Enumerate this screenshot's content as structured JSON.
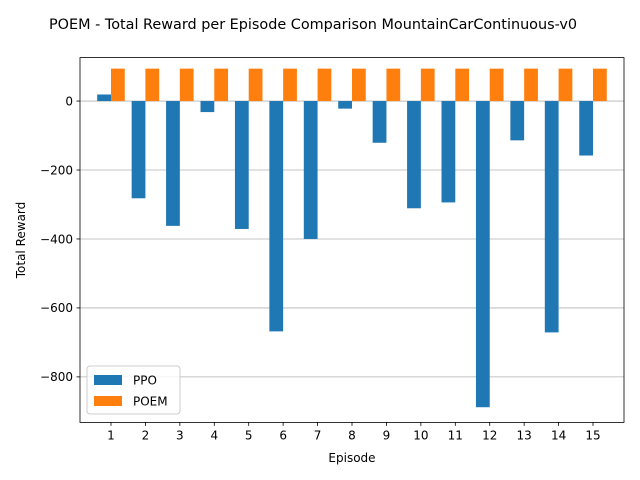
{
  "chart_data": {
    "type": "bar",
    "title": "POEM - Total Reward per Episode Comparison MountainCarContinuous-v0",
    "xlabel": "Episode",
    "ylabel": "Total Reward",
    "categories": [
      "1",
      "2",
      "3",
      "4",
      "5",
      "6",
      "7",
      "8",
      "9",
      "10",
      "11",
      "12",
      "13",
      "14",
      "15"
    ],
    "series": [
      {
        "name": "PPO",
        "color": "#1f77b4",
        "values": [
          19,
          -282,
          -362,
          -32,
          -371,
          -668,
          -400,
          -22,
          -121,
          -311,
          -294,
          -888,
          -114,
          -671,
          -158
        ]
      },
      {
        "name": "POEM",
        "color": "#ff7f0e",
        "values": [
          94,
          94,
          94,
          94,
          94,
          94,
          94,
          94,
          94,
          94,
          94,
          94,
          94,
          94,
          94
        ]
      }
    ],
    "yticks": [
      0,
      -200,
      -400,
      -600,
      -800
    ],
    "ytick_labels": [
      "0",
      "−200",
      "−400",
      "−600",
      "−800"
    ],
    "ylim": [
      -932,
      126
    ],
    "grid": "y",
    "legend_position": "lower-left"
  }
}
